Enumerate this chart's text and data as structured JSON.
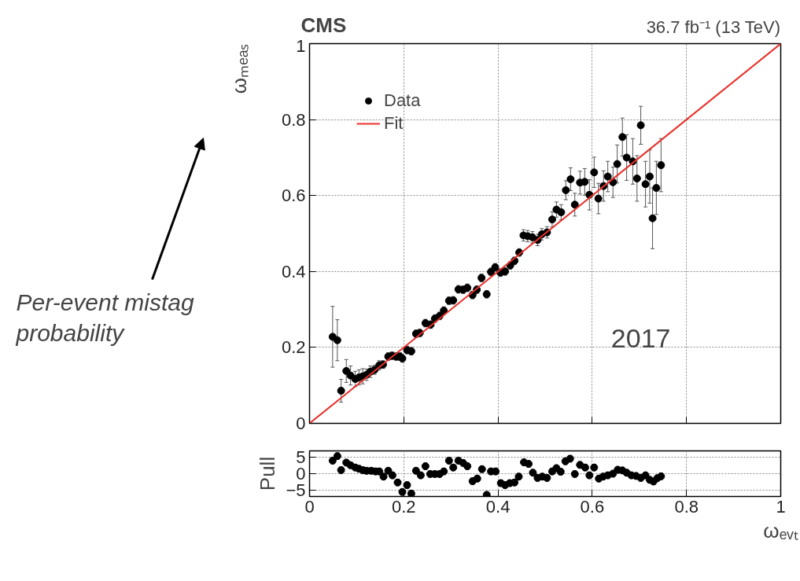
{
  "chart_data": [
    {
      "type": "scatter",
      "title": "CMS",
      "subtitle": "36.7 fb⁻¹ (13 TeV)",
      "ylabel": "ωₘₑₐₛ",
      "xlim": [
        0,
        1
      ],
      "ylim": [
        0,
        1
      ],
      "xticks": [
        0,
        0.2,
        0.4,
        0.6,
        0.8,
        1
      ],
      "yticks": [
        0,
        0.2,
        0.4,
        0.6,
        0.8,
        1
      ],
      "tick_labels": "y",
      "grid": true,
      "legend": "top left",
      "annotations": [
        "2017",
        "Per-event mistag probability"
      ],
      "series": [
        {
          "name": "Data",
          "marker": "circle",
          "color": "#000000",
          "x": [
            0.049,
            0.059,
            0.067,
            0.078,
            0.087,
            0.097,
            0.105,
            0.113,
            0.121,
            0.129,
            0.138,
            0.148,
            0.156,
            0.167,
            0.175,
            0.184,
            0.192,
            0.197,
            0.207,
            0.216,
            0.226,
            0.234,
            0.246,
            0.257,
            0.266,
            0.276,
            0.285,
            0.296,
            0.305,
            0.316,
            0.326,
            0.335,
            0.346,
            0.355,
            0.365,
            0.376,
            0.385,
            0.394,
            0.405,
            0.415,
            0.426,
            0.435,
            0.445,
            0.454,
            0.463,
            0.473,
            0.484,
            0.493,
            0.504,
            0.515,
            0.524,
            0.534,
            0.544,
            0.554,
            0.563,
            0.574,
            0.584,
            0.594,
            0.604,
            0.613,
            0.624,
            0.633,
            0.644,
            0.653,
            0.664,
            0.673,
            0.686,
            0.695,
            0.703,
            0.713,
            0.722,
            0.728,
            0.736,
            0.746
          ],
          "values": [
            0.228,
            0.219,
            0.086,
            0.138,
            0.126,
            0.117,
            0.121,
            0.124,
            0.128,
            0.136,
            0.141,
            0.153,
            0.155,
            0.176,
            0.178,
            0.176,
            0.176,
            0.171,
            0.193,
            0.19,
            0.236,
            0.238,
            0.264,
            0.26,
            0.276,
            0.283,
            0.297,
            0.323,
            0.324,
            0.353,
            0.352,
            0.357,
            0.338,
            0.352,
            0.383,
            0.34,
            0.399,
            0.411,
            0.397,
            0.4,
            0.416,
            0.428,
            0.45,
            0.495,
            0.493,
            0.49,
            0.483,
            0.498,
            0.503,
            0.537,
            0.563,
            0.556,
            0.614,
            0.643,
            0.576,
            0.634,
            0.636,
            0.602,
            0.661,
            0.592,
            0.625,
            0.65,
            0.635,
            0.683,
            0.754,
            0.7,
            0.69,
            0.645,
            0.785,
            0.63,
            0.65,
            0.54,
            0.62,
            0.68
          ],
          "errors": [
            0.08,
            0.054,
            0.03,
            0.03,
            0.025,
            0.02,
            0.02,
            0.02,
            0.015,
            0.015,
            0.012,
            0.012,
            0.01,
            0.01,
            0.01,
            0.01,
            0.01,
            0.01,
            0.01,
            0.01,
            0.01,
            0.01,
            0.01,
            0.01,
            0.01,
            0.01,
            0.01,
            0.01,
            0.01,
            0.01,
            0.01,
            0.01,
            0.01,
            0.01,
            0.01,
            0.01,
            0.01,
            0.01,
            0.01,
            0.01,
            0.01,
            0.01,
            0.01,
            0.015,
            0.015,
            0.015,
            0.015,
            0.015,
            0.015,
            0.02,
            0.02,
            0.02,
            0.025,
            0.03,
            0.03,
            0.03,
            0.035,
            0.04,
            0.04,
            0.04,
            0.04,
            0.04,
            0.04,
            0.05,
            0.05,
            0.06,
            0.06,
            0.06,
            0.05,
            0.06,
            0.07,
            0.08,
            0.07,
            0.07
          ]
        },
        {
          "name": "Fit",
          "type": "line",
          "color": "#e8302a",
          "x": [
            0,
            1
          ],
          "values": [
            0,
            1
          ]
        }
      ]
    },
    {
      "type": "scatter",
      "ylabel": "Pull",
      "xlabel": "ωₑᵥₜ",
      "xlim": [
        0,
        1
      ],
      "ylim": [
        -7,
        7
      ],
      "xticks": [
        0,
        0.2,
        0.4,
        0.6,
        0.8,
        1
      ],
      "yticks": [
        -5,
        0,
        5
      ],
      "grid": true,
      "marker": "circle",
      "series": [
        {
          "color": "#000000",
          "x": [
            0.049,
            0.059,
            0.067,
            0.078,
            0.087,
            0.097,
            0.105,
            0.113,
            0.121,
            0.131,
            0.14,
            0.148,
            0.157,
            0.167,
            0.176,
            0.187,
            0.197,
            0.207,
            0.216,
            0.226,
            0.236,
            0.246,
            0.256,
            0.266,
            0.276,
            0.285,
            0.296,
            0.305,
            0.316,
            0.326,
            0.335,
            0.346,
            0.356,
            0.366,
            0.376,
            0.385,
            0.395,
            0.406,
            0.415,
            0.425,
            0.435,
            0.444,
            0.455,
            0.465,
            0.474,
            0.484,
            0.494,
            0.504,
            0.515,
            0.524,
            0.533,
            0.543,
            0.553,
            0.563,
            0.574,
            0.585,
            0.594,
            0.604,
            0.614,
            0.623,
            0.633,
            0.644,
            0.654,
            0.664,
            0.673,
            0.683,
            0.693,
            0.703,
            0.713,
            0.722,
            0.73,
            0.738,
            0.746
          ],
          "values": [
            4.0,
            5.4,
            1.1,
            3.4,
            2.6,
            1.9,
            1.5,
            1.1,
            0.9,
            0.9,
            0.7,
            0.7,
            -0.9,
            0.9,
            -0.5,
            -2.7,
            -5.6,
            -3.5,
            -6.1,
            0.9,
            -0.5,
            2.3,
            -0.1,
            -0.1,
            -0.1,
            0.7,
            4.0,
            1.9,
            4.0,
            3.3,
            2.3,
            -2.3,
            -1.5,
            1.4,
            -6.5,
            0.7,
            0.7,
            -2.9,
            -3.5,
            -2.9,
            -2.7,
            -0.9,
            3.5,
            3.0,
            0.3,
            -1.3,
            -0.9,
            -1.3,
            0.7,
            1.7,
            0.6,
            3.8,
            4.6,
            -0.1,
            2.7,
            1.9,
            -0.5,
            1.9,
            -1.5,
            -0.9,
            -0.5,
            0.0,
            1.2,
            1.0,
            0.3,
            -0.5,
            -0.7,
            -1.3,
            -0.5,
            -1.9,
            -2.4,
            -1.4,
            -0.8
          ],
          "errors": [
            1,
            1,
            1,
            1,
            1,
            1,
            1,
            1,
            1,
            1,
            1,
            1,
            1,
            1,
            1,
            1,
            1,
            1,
            1,
            1,
            1,
            1,
            1,
            1,
            1,
            1,
            1,
            1,
            1,
            1,
            1,
            1,
            1,
            1,
            1,
            1,
            1,
            1,
            1,
            1,
            1,
            1,
            1,
            1,
            1,
            1,
            1,
            1,
            1,
            1,
            1,
            1,
            1,
            1,
            1,
            1,
            1,
            1,
            1,
            1,
            1,
            1,
            1,
            1,
            1,
            1,
            1,
            1,
            1,
            1,
            1,
            1,
            1
          ]
        }
      ]
    }
  ]
}
